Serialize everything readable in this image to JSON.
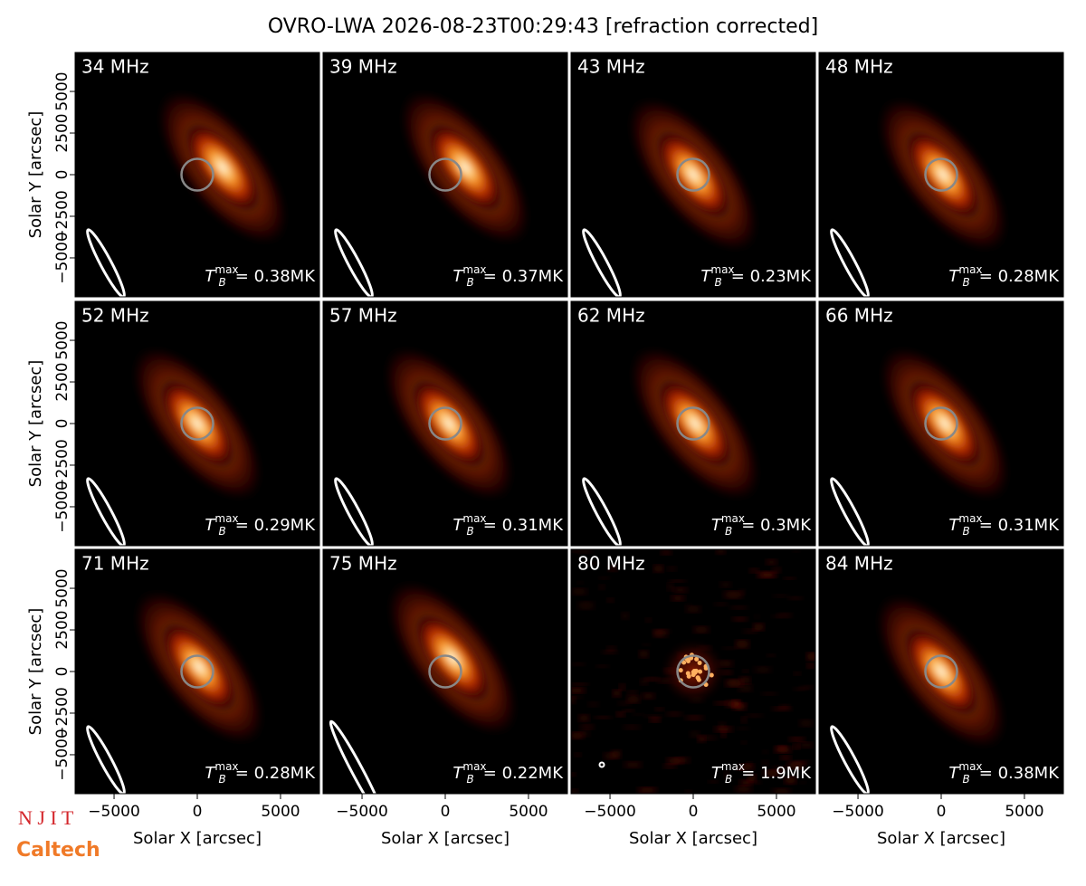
{
  "chart_data": {
    "type": "image",
    "title": "OVRO-LWA 2026-08-23T00:29:43 [refraction corrected]",
    "xlabel": "Solar X [arcsec]",
    "ylabel": "Solar Y [arcsec]",
    "xlim": [
      -7340,
      7340
    ],
    "ylim": [
      -7340,
      7340
    ],
    "xticks": [
      {
        "value": -5000,
        "label": "−5000"
      },
      0,
      5000
    ],
    "yticks": [
      {
        "value": -5000,
        "label": "−5000"
      },
      {
        "value": -2500,
        "label": "−2500"
      },
      0,
      2500,
      5000
    ],
    "tmax_symbol": {
      "base": "T",
      "sub": "B",
      "sup": "max"
    },
    "panels": [
      {
        "label": "34 MHz",
        "tmax": "= 0.38MK"
      },
      {
        "label": "39 MHz",
        "tmax": "= 0.37MK"
      },
      {
        "label": "43 MHz",
        "tmax": "= 0.23MK"
      },
      {
        "label": "48 MHz",
        "tmax": "= 0.28MK"
      },
      {
        "label": "52 MHz",
        "tmax": "= 0.29MK"
      },
      {
        "label": "57 MHz",
        "tmax": "= 0.31MK"
      },
      {
        "label": "62 MHz",
        "tmax": "= 0.3MK"
      },
      {
        "label": "66 MHz",
        "tmax": "= 0.31MK"
      },
      {
        "label": "71 MHz",
        "tmax": "= 0.28MK"
      },
      {
        "label": "75 MHz",
        "tmax": "= 0.22MK"
      },
      {
        "label": "80 MHz",
        "tmax": "= 1.9MK"
      },
      {
        "label": "84 MHz",
        "tmax": "= 0.38MK"
      }
    ]
  },
  "logos": [
    "N J I T",
    "Caltech"
  ]
}
